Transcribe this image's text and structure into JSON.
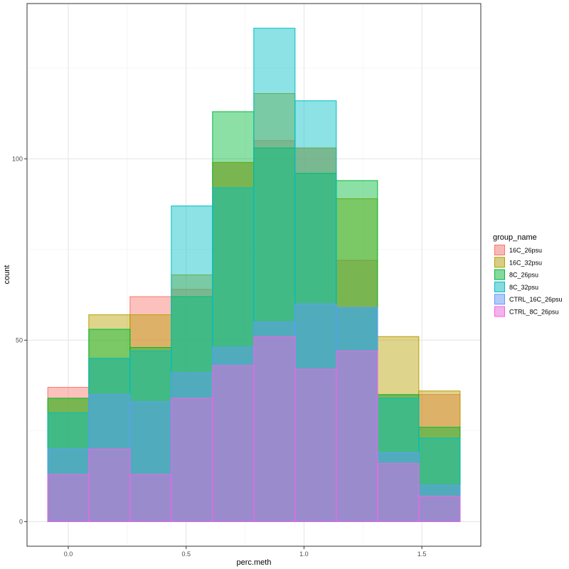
{
  "chart_data": {
    "type": "histogram",
    "title": "",
    "xlabel": "perc.meth",
    "ylabel": "count",
    "xlim": [
      -0.175,
      1.75
    ],
    "ylim": [
      -6.8,
      142.8
    ],
    "x_ticks": [
      0.0,
      0.5,
      1.0,
      1.5
    ],
    "x_tick_labels": [
      "0.0",
      "0.5",
      "1.0",
      "1.5"
    ],
    "y_ticks": [
      0,
      50,
      100
    ],
    "y_tick_labels": [
      "0",
      "50",
      "100"
    ],
    "grid": true,
    "bins": [
      [
        -0.087,
        0.087
      ],
      [
        0.087,
        0.262
      ],
      [
        0.262,
        0.437
      ],
      [
        0.437,
        0.612
      ],
      [
        0.612,
        0.787
      ],
      [
        0.787,
        0.962
      ],
      [
        0.962,
        1.137
      ],
      [
        1.137,
        1.312
      ],
      [
        1.312,
        1.487
      ],
      [
        1.487,
        1.662
      ]
    ],
    "legend": {
      "title": "group_name",
      "position": "right"
    },
    "series": [
      {
        "name": "16C_26psu",
        "color": "#F8766D",
        "values": [
          37,
          45,
          62,
          64,
          99,
          105,
          103,
          72,
          35,
          35
        ]
      },
      {
        "name": "16C_32psu",
        "color": "#B79F00",
        "values": [
          34,
          57,
          57,
          68,
          99,
          118,
          103,
          89,
          51,
          36
        ]
      },
      {
        "name": "8C_26psu",
        "color": "#00BA38",
        "values": [
          34,
          53,
          48,
          62,
          113,
          103,
          96,
          94,
          35,
          26
        ]
      },
      {
        "name": "8C_32psu",
        "color": "#00BFC4",
        "values": [
          30,
          45,
          47,
          87,
          92,
          136,
          116,
          59,
          34,
          23
        ]
      },
      {
        "name": "CTRL_16C_26psu",
        "color": "#619CFF",
        "values": [
          20,
          35,
          33,
          41,
          48,
          55,
          60,
          59,
          19,
          10
        ]
      },
      {
        "name": "CTRL_8C_26psu",
        "color": "#F564E3",
        "values": [
          13,
          20,
          13,
          34,
          43,
          51,
          42,
          47,
          16,
          7
        ]
      }
    ]
  }
}
